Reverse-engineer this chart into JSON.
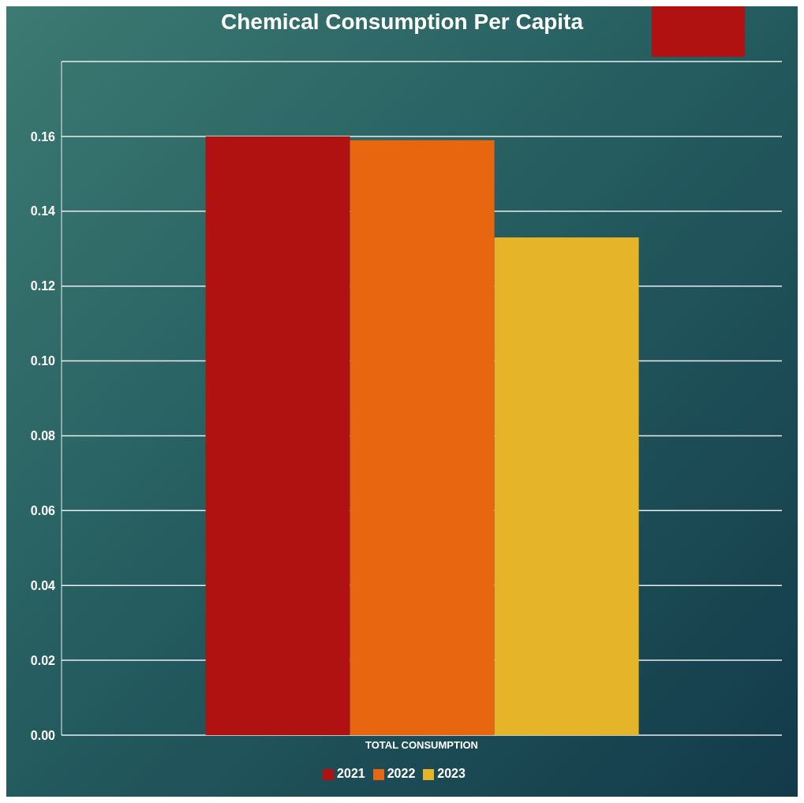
{
  "chart_data": {
    "type": "bar",
    "title": "Chemical Consumption Per Capita",
    "categories": [
      "TOTAL CONSUMPTION"
    ],
    "series": [
      {
        "name": "2021",
        "color": "#b01212",
        "values": [
          0.16
        ]
      },
      {
        "name": "2022",
        "color": "#e8660f",
        "values": [
          0.159
        ]
      },
      {
        "name": "2023",
        "color": "#e6b428",
        "values": [
          0.133
        ]
      }
    ],
    "ylim": [
      0,
      0.18
    ],
    "yticks": [
      {
        "value": 0,
        "label": "0.00"
      },
      0.02,
      0.04,
      0.06,
      0.08,
      {
        "value": 0.1,
        "label": "0.10"
      },
      0.12,
      0.14,
      0.16,
      {
        "value": 0.18,
        "label": null
      }
    ],
    "grid": "y",
    "legend": "bottom"
  }
}
